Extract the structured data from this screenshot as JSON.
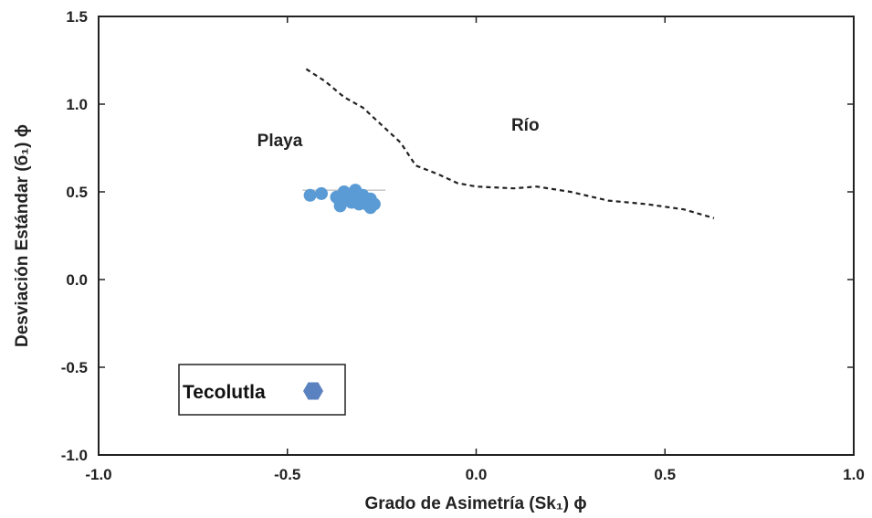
{
  "chart_data": {
    "type": "scatter",
    "xlabel": "Grado de Asimetría (Sk₁) ϕ",
    "ylabel": "Desviación Estándar (б₁) ϕ",
    "xlim": [
      -1.0,
      1.0
    ],
    "ylim": [
      -1.0,
      1.5
    ],
    "xticks": [
      "-1.0",
      "-0.5",
      "0.0",
      "0.5",
      "1.0"
    ],
    "yticks": [
      "1.5",
      "1.0",
      "0.5",
      "0.0",
      "-0.5",
      "-1.0"
    ],
    "xtick_values": [
      -1.0,
      -0.5,
      0.0,
      0.5,
      1.0
    ],
    "ytick_values": [
      1.5,
      1.0,
      0.5,
      0.0,
      -0.5,
      -1.0
    ],
    "grid": false,
    "legend_position": "bottom-left",
    "annotations": [
      {
        "text": "Playa",
        "x": -0.52,
        "y": 0.76
      },
      {
        "text": "Río",
        "x": 0.13,
        "y": 0.85
      }
    ],
    "series": [
      {
        "name": "Tecolutla",
        "color": "#5b9bd5",
        "legend_marker_color": "#5b82c0",
        "points": [
          {
            "x": -0.44,
            "y": 0.48
          },
          {
            "x": -0.41,
            "y": 0.49
          },
          {
            "x": -0.37,
            "y": 0.47
          },
          {
            "x": -0.36,
            "y": 0.44
          },
          {
            "x": -0.36,
            "y": 0.42
          },
          {
            "x": -0.35,
            "y": 0.5
          },
          {
            "x": -0.35,
            "y": 0.46
          },
          {
            "x": -0.34,
            "y": 0.48
          },
          {
            "x": -0.33,
            "y": 0.44
          },
          {
            "x": -0.32,
            "y": 0.51
          },
          {
            "x": -0.32,
            "y": 0.46
          },
          {
            "x": -0.31,
            "y": 0.43
          },
          {
            "x": -0.3,
            "y": 0.48
          },
          {
            "x": -0.3,
            "y": 0.45
          },
          {
            "x": -0.29,
            "y": 0.43
          },
          {
            "x": -0.28,
            "y": 0.46
          },
          {
            "x": -0.28,
            "y": 0.41
          },
          {
            "x": -0.27,
            "y": 0.43
          }
        ]
      }
    ],
    "reference_line": {
      "style": "dashed",
      "color": "#222222",
      "points": [
        {
          "x": -0.45,
          "y": 1.2
        },
        {
          "x": -0.4,
          "y": 1.13
        },
        {
          "x": -0.35,
          "y": 1.04
        },
        {
          "x": -0.3,
          "y": 0.98
        },
        {
          "x": -0.25,
          "y": 0.88
        },
        {
          "x": -0.2,
          "y": 0.78
        },
        {
          "x": -0.16,
          "y": 0.65
        },
        {
          "x": -0.1,
          "y": 0.6
        },
        {
          "x": -0.05,
          "y": 0.55
        },
        {
          "x": 0.0,
          "y": 0.53
        },
        {
          "x": 0.1,
          "y": 0.52
        },
        {
          "x": 0.16,
          "y": 0.53
        },
        {
          "x": 0.25,
          "y": 0.5
        },
        {
          "x": 0.35,
          "y": 0.45
        },
        {
          "x": 0.45,
          "y": 0.43
        },
        {
          "x": 0.55,
          "y": 0.4
        },
        {
          "x": 0.63,
          "y": 0.35
        }
      ]
    },
    "threshold_line": {
      "x1": -0.46,
      "x2": -0.24,
      "y": 0.51,
      "color": "#aaaaaa"
    }
  }
}
